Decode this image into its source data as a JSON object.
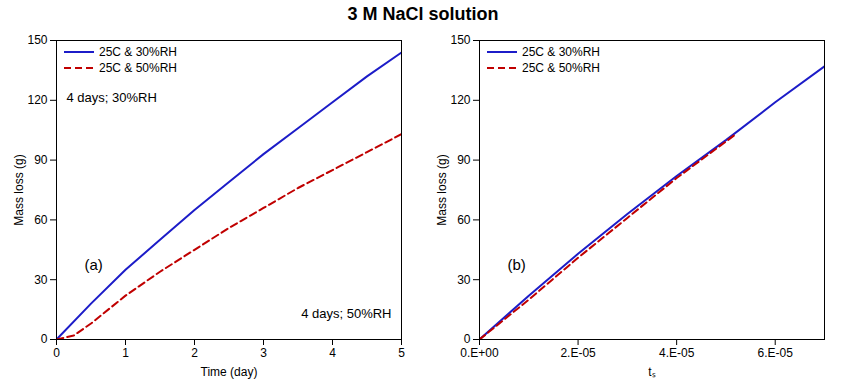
{
  "title": "3 M NaCl solution",
  "chart_data": [
    {
      "type": "line",
      "x_label": "Time (day)",
      "y_label": "Mass loss (g)",
      "xlim": [
        0,
        5
      ],
      "xticks": [
        0,
        1,
        2,
        3,
        4,
        5
      ],
      "ylim": [
        0,
        150
      ],
      "yticks": [
        0,
        30,
        60,
        90,
        120,
        150
      ],
      "legend": "top-left",
      "annotations": [
        "(a)",
        "4 days; 30%RH",
        "4 days; 50%RH"
      ],
      "series": [
        {
          "name": "25C & 30%RH",
          "color": "#1c1cc8",
          "line_style": "solid",
          "x": [
            0,
            0.5,
            1,
            1.5,
            2,
            2.5,
            3,
            3.5,
            4,
            4.5,
            5
          ],
          "values": [
            0,
            18,
            35,
            50,
            65,
            79,
            93,
            106,
            119,
            132,
            144
          ]
        },
        {
          "name": "25C & 50%RH",
          "color": "#c00000",
          "line_style": "dashed",
          "x": [
            0,
            0.25,
            0.5,
            1,
            1.5,
            2,
            2.5,
            3,
            3.5,
            4,
            4.5,
            5
          ],
          "values": [
            0,
            2,
            8,
            22,
            34,
            45,
            56,
            66,
            76,
            85,
            94,
            103
          ]
        }
      ]
    },
    {
      "type": "line",
      "x_label": "tₛ",
      "y_label": "Mass loss (g)",
      "xlim": [
        0,
        7e-05
      ],
      "xticks": [
        {
          "value": 0,
          "label": "0.E+00"
        },
        {
          "value": 2e-05,
          "label": "2.E-05"
        },
        {
          "value": 4e-05,
          "label": "4.E-05"
        },
        {
          "value": 6e-05,
          "label": "6.E-05"
        }
      ],
      "ylim": [
        0,
        150
      ],
      "yticks": [
        0,
        30,
        60,
        90,
        120,
        150
      ],
      "legend": "top-left",
      "annotations": [
        "(b)"
      ],
      "series": [
        {
          "name": "25C & 30%RH",
          "color": "#1c1cc8",
          "line_style": "solid",
          "x": [
            0,
            1e-05,
            2e-05,
            3e-05,
            4e-05,
            5e-05,
            6e-05,
            7e-05
          ],
          "values": [
            0,
            22,
            43,
            63,
            82,
            100,
            119,
            137
          ]
        },
        {
          "name": "25C & 50%RH",
          "color": "#c00000",
          "line_style": "dashed",
          "x": [
            0,
            1e-05,
            2e-05,
            3e-05,
            4e-05,
            5.2e-05
          ],
          "values": [
            0,
            20,
            41,
            61,
            81,
            103
          ]
        }
      ]
    }
  ]
}
